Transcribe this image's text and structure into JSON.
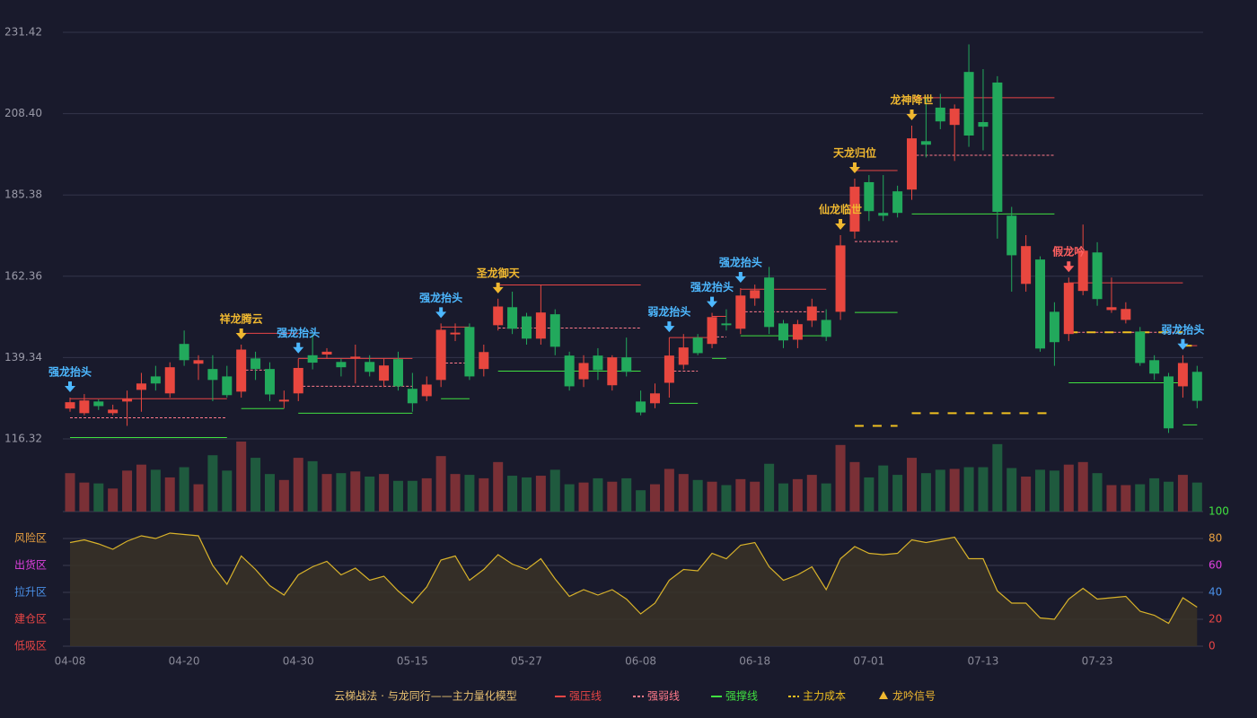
{
  "chart_data": {
    "type": "candlestick",
    "up_color": "#e8473f",
    "down_color": "#22a95c",
    "categories": [
      "04-08",
      null,
      null,
      null,
      null,
      null,
      null,
      null,
      "04-20",
      null,
      null,
      null,
      null,
      null,
      null,
      null,
      "04-30",
      null,
      null,
      null,
      null,
      null,
      null,
      null,
      "05-15",
      null,
      null,
      null,
      null,
      null,
      null,
      null,
      "05-27",
      null,
      null,
      null,
      null,
      null,
      null,
      null,
      "06-08",
      null,
      null,
      null,
      null,
      null,
      null,
      null,
      "06-18",
      null,
      null,
      null,
      null,
      null,
      null,
      null,
      "07-01",
      null,
      null,
      null,
      null,
      null,
      null,
      null,
      "07-13",
      null,
      null,
      null,
      null,
      null,
      null,
      null,
      "07-23",
      null,
      null,
      null,
      null,
      null,
      null,
      null
    ],
    "ohlc": [
      [
        124.9,
        128,
        124,
        126.7
      ],
      [
        123.6,
        129,
        123,
        127.2
      ],
      [
        126.9,
        127.5,
        124.5,
        125.6
      ],
      [
        123.6,
        126,
        123,
        124.6
      ],
      [
        126.9,
        130,
        120,
        127.7
      ],
      [
        130.2,
        135,
        124,
        132.0
      ],
      [
        134.0,
        137,
        130,
        132.0
      ],
      [
        129.2,
        138,
        128,
        136.6
      ],
      [
        143.2,
        147,
        137,
        138.6
      ],
      [
        137.6,
        140,
        133,
        138.6
      ],
      [
        136.1,
        140,
        127,
        133.0
      ],
      [
        134.0,
        137,
        128,
        128.7
      ],
      [
        129.7,
        143,
        128,
        141.6
      ],
      [
        139.1,
        141,
        133,
        136.1
      ],
      [
        136.1,
        138,
        127,
        128.9
      ],
      [
        126.9,
        130,
        125,
        127.4
      ],
      [
        129.2,
        139,
        127,
        136.4
      ],
      [
        140.0,
        146,
        136,
        137.9
      ],
      [
        140.2,
        142,
        139,
        141.0
      ],
      [
        138.1,
        139,
        134,
        136.6
      ],
      [
        139.1,
        143,
        132,
        139.6
      ],
      [
        138.1,
        140,
        134,
        135.3
      ],
      [
        132.8,
        139,
        131,
        137.1
      ],
      [
        138.9,
        141,
        130,
        131.2
      ],
      [
        130.5,
        135,
        124,
        126.4
      ],
      [
        128.4,
        134,
        127,
        131.7
      ],
      [
        133.0,
        149,
        131,
        147.2
      ],
      [
        145.9,
        149,
        144,
        146.4
      ],
      [
        148.0,
        149,
        133,
        134.0
      ],
      [
        136.1,
        143,
        134,
        140.9
      ],
      [
        148.5,
        156,
        147,
        153.8
      ],
      [
        153.6,
        158,
        146,
        147.5
      ],
      [
        151.0,
        152,
        143,
        144.7
      ],
      [
        144.7,
        160,
        143,
        152.1
      ],
      [
        151.6,
        153,
        140,
        142.4
      ],
      [
        139.9,
        141,
        130,
        131.2
      ],
      [
        133.2,
        140,
        131,
        137.8
      ],
      [
        139.9,
        142,
        133,
        135.8
      ],
      [
        131.5,
        140,
        130,
        139.4
      ],
      [
        139.4,
        145,
        134,
        135.3
      ],
      [
        126.9,
        130,
        123,
        123.8
      ],
      [
        126.4,
        132,
        125,
        129.2
      ],
      [
        132.2,
        145,
        128,
        139.9
      ],
      [
        137.3,
        146,
        136,
        142.2
      ],
      [
        145.0,
        146,
        140,
        140.6
      ],
      [
        143.2,
        152,
        142,
        150.8
      ],
      [
        149.0,
        153,
        147,
        148.5
      ],
      [
        147.5,
        159,
        146,
        156.9
      ],
      [
        156.1,
        160,
        154,
        158.4
      ],
      [
        162.0,
        165,
        146,
        148.0
      ],
      [
        149.0,
        150,
        142,
        144.2
      ],
      [
        144.4,
        150,
        142,
        148.8
      ],
      [
        149.8,
        156,
        148,
        153.8
      ],
      [
        150.0,
        153,
        144,
        145.2
      ],
      [
        152.3,
        174,
        150,
        171.1
      ],
      [
        175.0,
        190,
        173,
        187.7
      ],
      [
        189.0,
        191,
        178,
        180.8
      ],
      [
        180.3,
        191,
        178,
        179.5
      ],
      [
        186.4,
        188,
        179,
        180.3
      ],
      [
        186.9,
        205,
        184,
        201.4
      ],
      [
        200.6,
        213,
        196,
        199.6
      ],
      [
        210.1,
        214,
        204,
        206.2
      ],
      [
        205.2,
        211,
        195,
        209.8
      ],
      [
        220.2,
        228,
        199,
        202.2
      ],
      [
        206.0,
        221,
        198,
        204.7
      ],
      [
        217.2,
        219,
        173,
        180.6
      ],
      [
        179.5,
        182,
        158,
        168.3
      ],
      [
        160.2,
        174,
        158,
        170.9
      ],
      [
        167.1,
        168,
        141,
        141.9
      ],
      [
        152.3,
        155,
        137,
        143.7
      ],
      [
        146.0,
        162,
        144,
        160.5
      ],
      [
        158.2,
        177,
        157,
        169.6
      ],
      [
        169.1,
        172,
        154,
        155.9
      ],
      [
        152.8,
        162,
        152,
        153.6
      ],
      [
        150.0,
        155,
        149,
        153.1
      ],
      [
        146.7,
        148,
        137,
        137.8
      ],
      [
        138.6,
        140,
        133,
        134.8
      ],
      [
        134.0,
        135,
        118,
        119.3
      ],
      [
        131.2,
        140,
        128,
        137.8
      ],
      [
        135.3,
        137,
        125,
        127.1
      ]
    ],
    "ylim": [
      116.32,
      231.42
    ],
    "yticks": [
      116.32,
      139.34,
      162.36,
      185.38,
      {
        "value": 208.4,
        "label": "208.40"
      },
      231.42
    ],
    "grid": true,
    "volume": [
      45,
      34,
      33,
      27,
      48,
      55,
      49,
      40,
      52,
      32,
      66,
      48,
      82,
      63,
      44,
      37,
      63,
      59,
      44,
      45,
      47,
      41,
      44,
      36,
      36,
      39,
      65,
      44,
      43,
      39,
      58,
      42,
      40,
      42,
      49,
      32,
      34,
      39,
      35,
      39,
      25,
      32,
      50,
      44,
      37,
      35,
      31,
      38,
      35,
      56,
      33,
      38,
      43,
      33,
      78,
      58,
      40,
      54,
      43,
      63,
      45,
      49,
      50,
      52,
      52,
      79,
      51,
      41,
      49,
      48,
      55,
      58,
      45,
      31,
      31,
      32,
      39,
      35,
      43,
      34
    ],
    "indicator": {
      "color": "#d9b32a",
      "values": [
        77,
        79,
        76,
        72,
        78,
        82,
        80,
        84,
        83,
        82,
        60,
        46,
        67,
        57,
        45,
        38,
        53,
        59,
        63,
        53,
        58,
        49,
        52,
        41,
        32,
        44,
        64,
        67,
        49,
        57,
        68,
        61,
        57,
        65,
        50,
        37,
        42,
        38,
        42,
        35,
        24,
        32,
        49,
        57,
        56,
        69,
        65,
        75,
        77,
        59,
        49,
        53,
        59,
        42,
        65,
        74,
        69,
        68,
        69,
        79,
        77,
        79,
        81,
        65,
        65,
        41,
        32,
        32,
        21,
        20,
        35,
        43,
        35,
        36,
        37,
        26,
        23,
        17,
        36,
        29
      ],
      "y2lim": [
        0,
        100
      ],
      "y2ticks": [
        0,
        20,
        40,
        60,
        80,
        100
      ],
      "tick_colors": [
        "#e84545",
        "#e84545",
        "#4a90e8",
        "#e040e0",
        "#e8a040",
        "#40e040"
      ],
      "zones": [
        {
          "label": "风险区",
          "value": 80,
          "color": "#e8a040"
        },
        {
          "label": "出货区",
          "value": 60,
          "color": "#e040e0"
        },
        {
          "label": "拉升区",
          "value": 40,
          "color": "#4a90e8"
        },
        {
          "label": "建仓区",
          "value": 20,
          "color": "#e84545"
        },
        {
          "label": "低吸区",
          "value": 0,
          "color": "#e84545"
        }
      ]
    },
    "signals": [
      {
        "index": 0,
        "label": "强龙抬头",
        "color": "#4db8ff"
      },
      {
        "index": 12,
        "label": "祥龙腾云",
        "color": "#f0b830"
      },
      {
        "index": 16,
        "label": "强龙抬头",
        "color": "#4db8ff"
      },
      {
        "index": 26,
        "label": "强龙抬头",
        "color": "#4db8ff"
      },
      {
        "index": 30,
        "label": "圣龙御天",
        "color": "#f0b830"
      },
      {
        "index": 42,
        "label": "弱龙抬头",
        "color": "#4db8ff"
      },
      {
        "index": 45,
        "label": "强龙抬头",
        "color": "#4db8ff"
      },
      {
        "index": 47,
        "label": "强龙抬头",
        "color": "#4db8ff"
      },
      {
        "index": 54,
        "label": "仙龙临世",
        "color": "#f0b830"
      },
      {
        "index": 55,
        "label": "天龙归位",
        "color": "#f0b830"
      },
      {
        "index": 59,
        "label": "龙神降世",
        "color": "#f0b830"
      },
      {
        "index": 70,
        "label": "假龙吟",
        "color": "#ff6060"
      },
      {
        "index": 78,
        "label": "弱龙抬头",
        "color": "#4db8ff"
      }
    ],
    "lines": {
      "pressure": [
        [
          0,
          11,
          127.7
        ],
        [
          12,
          16,
          146.2
        ],
        [
          16,
          24,
          139.1
        ],
        [
          26,
          28,
          148.0
        ],
        [
          30,
          40,
          159.9
        ],
        [
          42,
          45,
          145.0
        ],
        [
          45,
          46,
          151.0
        ],
        [
          47,
          53,
          158.7
        ],
        [
          55,
          58,
          192.3
        ],
        [
          59,
          69,
          212.9
        ],
        [
          70,
          78,
          160.5
        ],
        [
          78,
          79,
          142.7
        ]
      ],
      "weak": [
        [
          0,
          11,
          122.3
        ],
        [
          12,
          14,
          135.8
        ],
        [
          16,
          24,
          131.2
        ],
        [
          26,
          28,
          137.8
        ],
        [
          30,
          40,
          147.7
        ],
        [
          42,
          44,
          135.5
        ],
        [
          45,
          46,
          145.2
        ],
        [
          47,
          53,
          152.3
        ],
        [
          55,
          58,
          172.2
        ],
        [
          59,
          69,
          196.6
        ],
        [
          70,
          78,
          146.5
        ]
      ],
      "support": [
        [
          0,
          11,
          116.7
        ],
        [
          12,
          15,
          124.9
        ],
        [
          16,
          24,
          123.6
        ],
        [
          26,
          28,
          127.7
        ],
        [
          30,
          40,
          135.5
        ],
        [
          42,
          44,
          126.4
        ],
        [
          45,
          46,
          139.1
        ],
        [
          47,
          53,
          145.5
        ],
        [
          55,
          58,
          152.1
        ],
        [
          59,
          69,
          180.0
        ],
        [
          70,
          78,
          132.2
        ],
        [
          78,
          79,
          120.3
        ]
      ],
      "cost": [
        [
          55,
          58,
          120.0
        ],
        [
          59,
          69,
          123.6
        ],
        [
          70,
          78,
          146.5
        ],
        [
          78,
          79,
          142.7
        ]
      ]
    },
    "legend": {
      "title": "云梯战法 · 与龙同行——主力量化模型",
      "title_color": "#e8c070",
      "entries": [
        {
          "label": "强压线",
          "color": "#e84545",
          "style": "solid"
        },
        {
          "label": "强弱线",
          "color": "#ff7a8a",
          "style": "dashed"
        },
        {
          "label": "强撑线",
          "color": "#40e040",
          "style": "solid"
        },
        {
          "label": "主力成本",
          "color": "#f0c020",
          "style": "dashed"
        },
        {
          "label": "龙吟信号",
          "color": "#f0b830",
          "style": "triangle"
        }
      ]
    }
  }
}
